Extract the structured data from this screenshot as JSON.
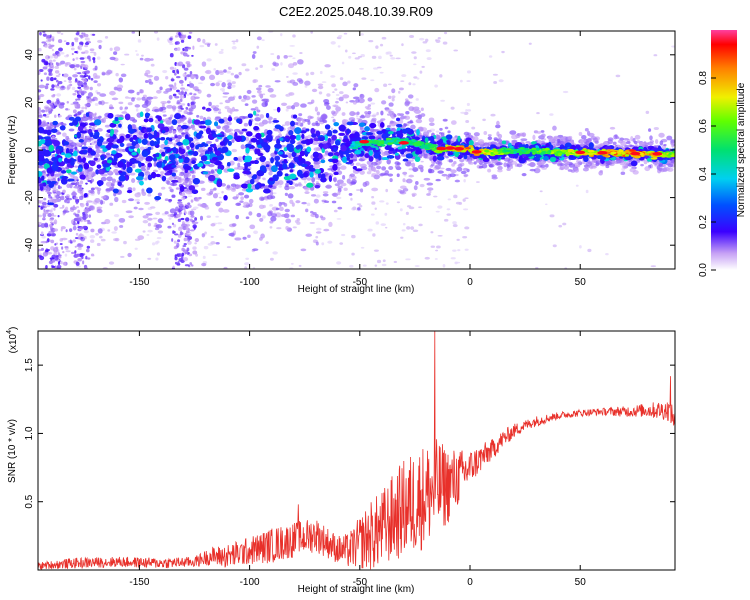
{
  "title": "C2E2.2025.048.10.39.R09",
  "colors": {
    "background": "#ffffff",
    "axis": "#000000",
    "snr_line": "#e8302a",
    "spec_core": "#3b10e0",
    "spec_halo": "#b48cf0",
    "spec_faint": "#e6d8fb"
  },
  "chart_data": [
    {
      "type": "heatmap",
      "title": "C2E2.2025.048.10.39.R09",
      "xlabel": "Height of straight line (km)",
      "ylabel": "Frequency (Hz)",
      "xlim": [
        -196,
        93
      ],
      "ylim": [
        -50,
        50
      ],
      "xticks": [
        -150,
        -100,
        -50,
        0,
        50
      ],
      "xtick_labels": [
        "-150",
        "-100",
        "-50",
        "0",
        "50"
      ],
      "yticks": [
        -40,
        -20,
        0,
        20,
        40
      ],
      "ytick_labels": [
        "-40",
        "-20",
        "0",
        "20",
        "40"
      ],
      "colorbar": {
        "label": "Normalized spectral amplitude",
        "range": [
          0,
          1
        ],
        "ticks": [
          0.0,
          0.2,
          0.4,
          0.6,
          0.8
        ],
        "tick_labels": [
          "0.0",
          "0.2",
          "0.4",
          "0.6",
          "0.8"
        ],
        "colormap": "rainbow (white-violet-blue-cyan-green-yellow-red)"
      },
      "ridge": [
        {
          "x": -196,
          "freq": -2,
          "spread": 14,
          "amp": 0.35
        },
        {
          "x": -150,
          "freq": 0,
          "spread": 14,
          "amp": 0.35
        },
        {
          "x": -100,
          "freq": -1,
          "spread": 14,
          "amp": 0.35
        },
        {
          "x": -70,
          "freq": 0,
          "spread": 12,
          "amp": 0.35
        },
        {
          "x": -55,
          "freq": 1,
          "spread": 8,
          "amp": 0.4
        },
        {
          "x": -48,
          "freq": 3,
          "spread": 7,
          "amp": 0.55
        },
        {
          "x": -30,
          "freq": 4,
          "spread": 7,
          "amp": 0.55
        },
        {
          "x": -20,
          "freq": 2,
          "spread": 5,
          "amp": 0.6
        },
        {
          "x": -15,
          "freq": 0,
          "spread": 4,
          "amp": 0.7
        },
        {
          "x": -10,
          "freq": 1,
          "spread": 4,
          "amp": 0.8
        },
        {
          "x": 0,
          "freq": 0.5,
          "spread": 3,
          "amp": 0.85
        },
        {
          "x": 3,
          "freq": -1,
          "spread": 3,
          "amp": 0.85
        },
        {
          "x": 20,
          "freq": -0.5,
          "spread": 3,
          "amp": 0.55
        },
        {
          "x": 50,
          "freq": -1,
          "spread": 2.5,
          "amp": 0.75
        },
        {
          "x": 75,
          "freq": -1.5,
          "spread": 2.5,
          "amp": 0.9
        },
        {
          "x": 93,
          "freq": -2,
          "spread": 2.5,
          "amp": 0.7
        }
      ],
      "noise_columns": [
        {
          "x": -190,
          "freq_range": [
            -50,
            50
          ]
        },
        {
          "x": -176,
          "freq_range": [
            -50,
            50
          ]
        },
        {
          "x": -130,
          "freq_range": [
            -50,
            50
          ]
        }
      ]
    },
    {
      "type": "line",
      "xlabel": "Height of straight line (km)",
      "ylabel": "SNR (10 * v/v)",
      "y_multiplier": "(x10^4)",
      "y_multiplier_base": "(x10",
      "y_multiplier_exp": "4",
      "xlim": [
        -196,
        93
      ],
      "ylim": [
        0,
        1.75
      ],
      "xticks": [
        -150,
        -100,
        -50,
        0,
        50
      ],
      "xtick_labels": [
        "-150",
        "-100",
        "-50",
        "0",
        "50"
      ],
      "yticks": [
        0.5,
        1.0,
        1.5
      ],
      "ytick_labels": [
        "0.5",
        "1.0",
        "1.5"
      ],
      "series": [
        {
          "name": "SNR",
          "x": [
            -196,
            -180,
            -160,
            -140,
            -125,
            -118,
            -110,
            -100,
            -90,
            -80,
            -70,
            -60,
            -55,
            -50,
            -45,
            -40,
            -35,
            -30,
            -25,
            -20,
            -15,
            -10,
            -5,
            0,
            5,
            10,
            15,
            20,
            25,
            30,
            40,
            50,
            60,
            70,
            80,
            85,
            90,
            93
          ],
          "values": [
            0.03,
            0.05,
            0.06,
            0.05,
            0.06,
            0.1,
            0.1,
            0.14,
            0.18,
            0.22,
            0.26,
            0.15,
            0.14,
            0.2,
            0.25,
            0.3,
            0.38,
            0.45,
            0.5,
            0.55,
            0.6,
            0.62,
            0.68,
            0.75,
            0.82,
            0.88,
            0.96,
            1.02,
            1.06,
            1.09,
            1.13,
            1.15,
            1.16,
            1.16,
            1.17,
            1.17,
            1.17,
            1.1
          ],
          "noise_amp": [
            0.02,
            0.03,
            0.03,
            0.03,
            0.03,
            0.05,
            0.07,
            0.08,
            0.1,
            0.1,
            0.1,
            0.08,
            0.1,
            0.15,
            0.2,
            0.22,
            0.25,
            0.28,
            0.3,
            0.3,
            0.28,
            0.22,
            0.16,
            0.1,
            0.08,
            0.06,
            0.05,
            0.04,
            0.03,
            0.03,
            0.02,
            0.02,
            0.02,
            0.03,
            0.04,
            0.05,
            0.06,
            0.06
          ]
        }
      ],
      "annotations": [
        {
          "x": -16,
          "value": 1.75,
          "note": "spike"
        },
        {
          "x": -78,
          "value": 0.48,
          "note": "spike"
        },
        {
          "x": 91,
          "value": 1.42,
          "note": "spike"
        }
      ]
    }
  ]
}
